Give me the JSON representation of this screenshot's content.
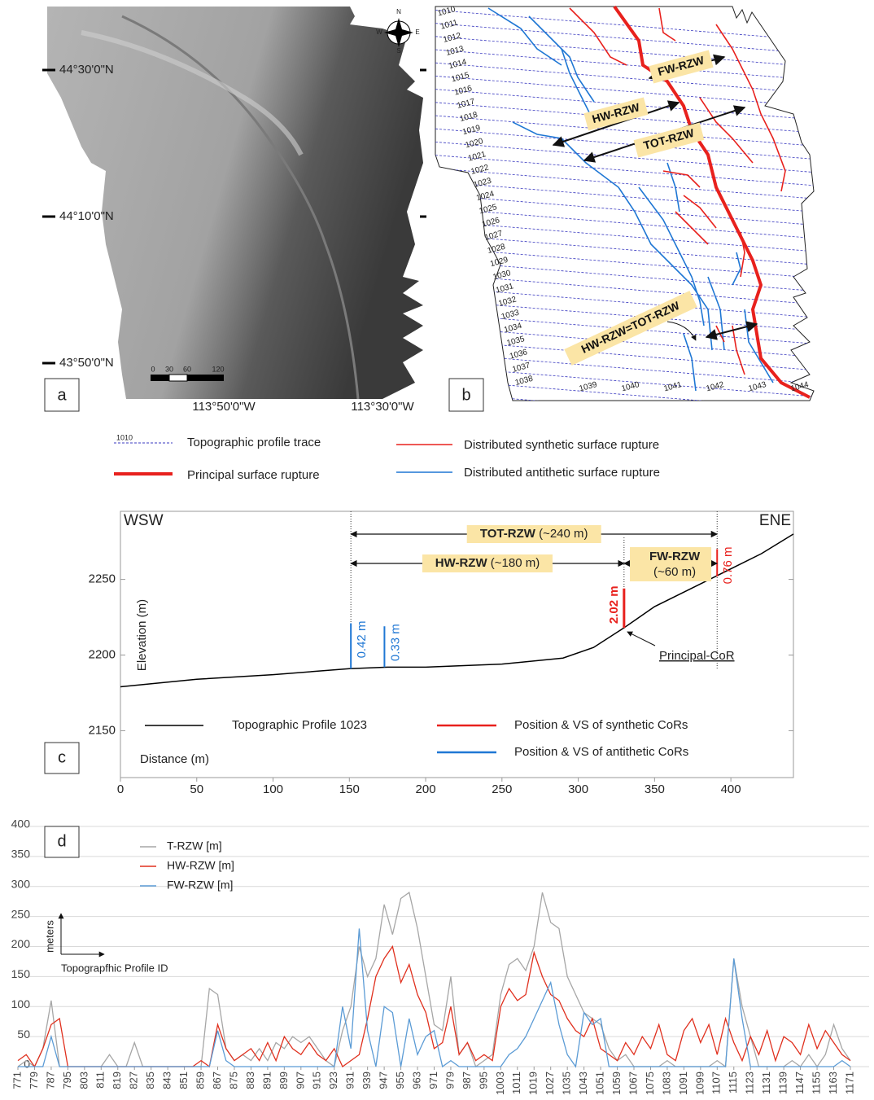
{
  "panel_a": {
    "label": "a",
    "lat_labels": [
      "44°30'0\"N",
      "44°10'0\"N",
      "43°50'0\"N"
    ],
    "lon_labels": [
      "113°50'0\"W",
      "113°30'0\"W"
    ],
    "scale_labels": [
      "0",
      "30",
      "60",
      "120"
    ],
    "compass": [
      "N",
      "E",
      "S",
      "W"
    ]
  },
  "panel_b": {
    "label": "b",
    "profile_labels": [
      "1010",
      "1011",
      "1012",
      "1013",
      "1014",
      "1015",
      "1016",
      "1017",
      "1018",
      "1019",
      "1020",
      "1021",
      "1022",
      "1023",
      "1024",
      "1025",
      "1026",
      "1027",
      "1028",
      "1029",
      "1030",
      "1031",
      "1032",
      "1033",
      "1034",
      "1035",
      "1036",
      "1037",
      "1038",
      "1039",
      "1040",
      "1041",
      "1042",
      "1043",
      "1044"
    ],
    "zones": [
      "FW-RZW",
      "HW-RZW",
      "TOT-RZW",
      "HW-RZW=TOT-RZW"
    ]
  },
  "legend": {
    "profile_sample": "1010",
    "items": [
      "Topographic profile trace",
      "Principal surface rupture",
      "Distributed synthetic surface rupture",
      "Distributed antithetic surface rupture"
    ]
  },
  "chart_data": [
    {
      "type": "line",
      "label": "c",
      "left_label": "WSW",
      "right_label": "ENE",
      "y_label": "Elevation (m)",
      "x_label": "Distance (m)",
      "x": [
        0,
        50,
        100,
        150,
        175,
        200,
        250,
        290,
        310,
        330,
        350,
        390,
        420,
        441
      ],
      "series": [
        {
          "name": "Topographic Profile 1023",
          "color": "#000000",
          "values": [
            2179,
            2184,
            2187,
            2191,
            2192,
            2192,
            2194,
            2198,
            2205,
            2218,
            2232,
            2252,
            2267,
            2280
          ]
        }
      ],
      "cor_legend": [
        {
          "name": "Position & VS of synthetic CoRs",
          "color": "#e8211d"
        },
        {
          "name": "Position & VS of antithetic CoRs",
          "color": "#1f77d4"
        }
      ],
      "cors": [
        {
          "x": 151,
          "base": 2191,
          "top": 2221,
          "label": "0.42 m",
          "color": "#1f77d4"
        },
        {
          "x": 173,
          "base": 2192,
          "top": 2219,
          "label": "0.33 m",
          "color": "#1f77d4"
        },
        {
          "x": 330,
          "base": 2218,
          "top": 2244,
          "label": "2.02 m",
          "color": "#e8211d"
        },
        {
          "x": 391,
          "base": 2252,
          "top": 2270,
          "label": "0.76 m",
          "color": "#e8211d"
        }
      ],
      "zones": [
        {
          "name": "TOT-RZW",
          "detail": "(~240 m)",
          "from": 151,
          "to": 391
        },
        {
          "name": "HW-RZW",
          "detail": "(~180 m)",
          "from": 151,
          "to": 330
        },
        {
          "name": "FW-RZW",
          "detail": "(~60 m)",
          "from": 330,
          "to": 391
        }
      ],
      "principal_cor": {
        "text": "Principal-CoR",
        "x": 330,
        "y": 2217
      },
      "xlim": [
        0,
        441
      ],
      "ylim": [
        2119,
        2295
      ],
      "xticks": [
        0,
        50,
        100,
        150,
        200,
        250,
        300,
        350,
        400
      ],
      "yticks": [
        2150,
        2200,
        2250
      ]
    },
    {
      "type": "line",
      "label": "d",
      "y_label": "meters",
      "x_label": "Topograpfhic Profile ID",
      "x": [
        771,
        775,
        779,
        783,
        787,
        791,
        795,
        799,
        803,
        807,
        811,
        815,
        819,
        823,
        827,
        831,
        835,
        839,
        843,
        847,
        851,
        855,
        859,
        863,
        867,
        871,
        875,
        879,
        883,
        887,
        891,
        895,
        899,
        903,
        907,
        911,
        915,
        919,
        923,
        927,
        931,
        935,
        939,
        943,
        947,
        951,
        955,
        959,
        963,
        967,
        971,
        975,
        979,
        983,
        987,
        991,
        995,
        999,
        1003,
        1007,
        1011,
        1015,
        1019,
        1023,
        1027,
        1031,
        1035,
        1039,
        1043,
        1047,
        1051,
        1055,
        1059,
        1063,
        1067,
        1071,
        1075,
        1079,
        1083,
        1087,
        1091,
        1095,
        1099,
        1103,
        1107,
        1111,
        1115,
        1119,
        1123,
        1127,
        1131,
        1135,
        1139,
        1143,
        1147,
        1151,
        1155,
        1159,
        1163,
        1167,
        1171
      ],
      "series": [
        {
          "name": "T-RZW [m]",
          "color": "#a6a6a6",
          "values": [
            0,
            10,
            0,
            30,
            110,
            0,
            0,
            0,
            0,
            0,
            0,
            20,
            0,
            0,
            40,
            0,
            0,
            0,
            0,
            0,
            0,
            0,
            0,
            130,
            120,
            30,
            10,
            20,
            10,
            30,
            10,
            40,
            30,
            50,
            40,
            50,
            30,
            10,
            0,
            60,
            100,
            200,
            150,
            180,
            270,
            220,
            280,
            290,
            230,
            150,
            70,
            60,
            150,
            20,
            40,
            0,
            10,
            20,
            120,
            170,
            180,
            160,
            200,
            290,
            240,
            230,
            150,
            120,
            90,
            80,
            70,
            30,
            10,
            20,
            0,
            0,
            0,
            0,
            10,
            0,
            0,
            0,
            0,
            0,
            10,
            0,
            180,
            100,
            50,
            0,
            0,
            0,
            0,
            10,
            0,
            20,
            0,
            20,
            70,
            30,
            10
          ]
        },
        {
          "name": "HW-RZW [m]",
          "color": "#e0301e",
          "values": [
            10,
            20,
            0,
            30,
            70,
            80,
            0,
            0,
            0,
            0,
            0,
            0,
            0,
            0,
            0,
            0,
            0,
            0,
            0,
            0,
            0,
            0,
            10,
            0,
            70,
            30,
            10,
            20,
            30,
            10,
            40,
            10,
            50,
            30,
            20,
            40,
            20,
            10,
            30,
            0,
            10,
            20,
            80,
            150,
            180,
            200,
            140,
            170,
            120,
            90,
            30,
            40,
            100,
            20,
            40,
            10,
            20,
            10,
            100,
            130,
            110,
            120,
            190,
            150,
            120,
            110,
            80,
            60,
            50,
            80,
            30,
            20,
            10,
            40,
            20,
            50,
            30,
            70,
            20,
            10,
            60,
            80,
            40,
            70,
            20,
            80,
            40,
            10,
            50,
            20,
            60,
            10,
            50,
            40,
            20,
            70,
            30,
            60,
            40,
            20,
            10
          ]
        },
        {
          "name": "FW-RZW [m]",
          "color": "#5b9bd5",
          "values": [
            0,
            0,
            0,
            0,
            50,
            0,
            0,
            0,
            0,
            0,
            0,
            0,
            0,
            0,
            0,
            0,
            0,
            0,
            0,
            0,
            0,
            0,
            0,
            0,
            60,
            10,
            0,
            0,
            0,
            0,
            0,
            0,
            0,
            0,
            0,
            0,
            0,
            0,
            0,
            100,
            30,
            230,
            60,
            0,
            100,
            90,
            0,
            80,
            20,
            50,
            60,
            0,
            10,
            0,
            0,
            0,
            0,
            0,
            0,
            20,
            30,
            50,
            80,
            110,
            140,
            70,
            20,
            0,
            90,
            70,
            80,
            0,
            0,
            0,
            0,
            0,
            0,
            0,
            0,
            0,
            0,
            0,
            0,
            0,
            0,
            0,
            180,
            80,
            0,
            0,
            0,
            0,
            0,
            0,
            0,
            0,
            0,
            0,
            0,
            10,
            0
          ]
        }
      ],
      "xlim": [
        771,
        1180
      ],
      "ylim": [
        0,
        400
      ],
      "xticks": [
        771,
        779,
        787,
        795,
        803,
        811,
        819,
        827,
        835,
        843,
        851,
        859,
        867,
        875,
        883,
        891,
        899,
        907,
        915,
        923,
        931,
        939,
        947,
        955,
        963,
        971,
        979,
        987,
        995,
        1003,
        1011,
        1019,
        1027,
        1035,
        1043,
        1051,
        1059,
        1067,
        1075,
        1083,
        1091,
        1099,
        1107,
        1115,
        1123,
        1131,
        1139,
        1147,
        1155,
        1163,
        1171
      ],
      "yticks": [
        0,
        50,
        100,
        150,
        200,
        250,
        300,
        350,
        400
      ],
      "grid": true
    }
  ]
}
